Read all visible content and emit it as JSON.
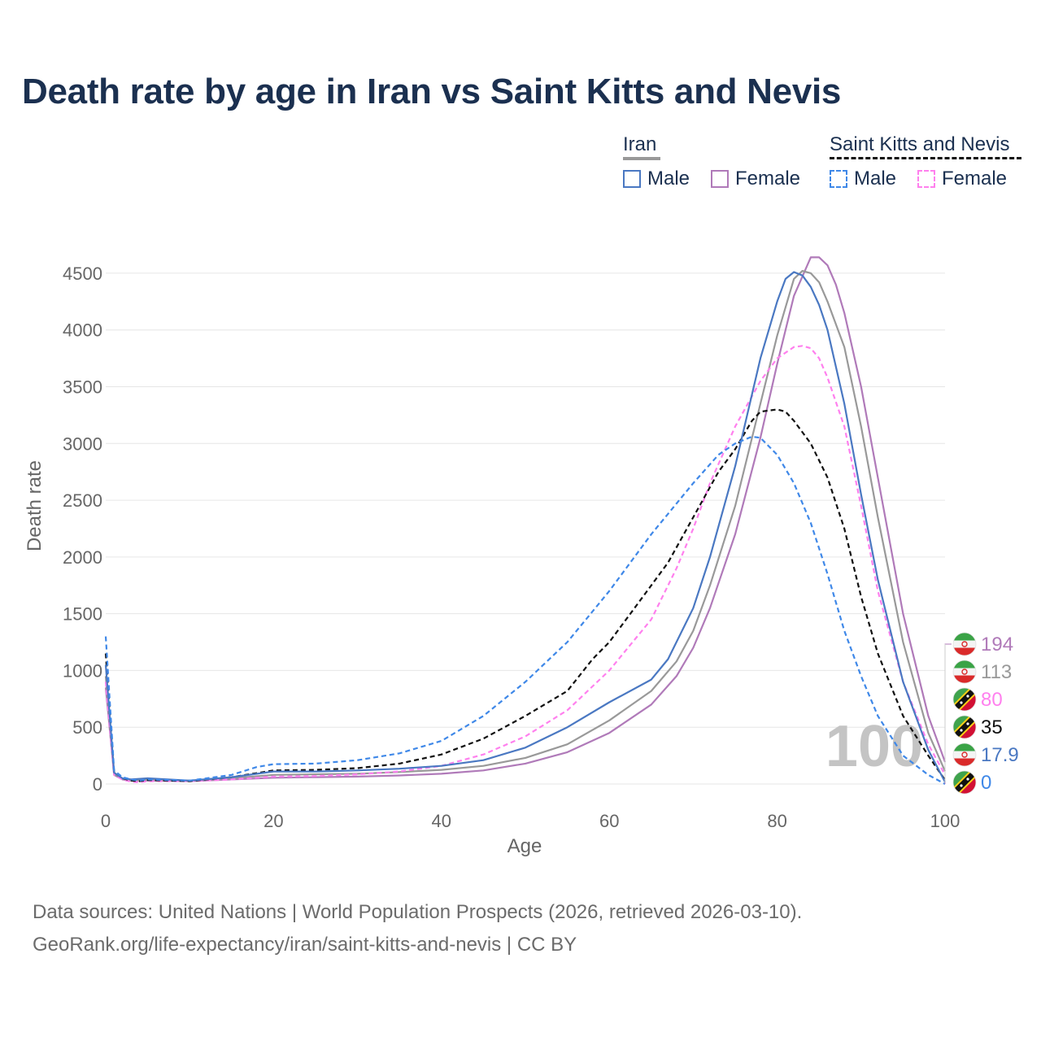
{
  "chart_data": {
    "type": "line",
    "title": "Death rate by age in Iran vs Saint Kitts and Nevis",
    "xlabel": "Age",
    "ylabel": "Death rate",
    "xlim": [
      0,
      100
    ],
    "ylim": [
      0,
      4650
    ],
    "x_ticks": [
      0,
      20,
      40,
      60,
      80,
      100
    ],
    "y_ticks": [
      0,
      500,
      1000,
      1500,
      2000,
      2500,
      3000,
      3500,
      4000,
      4500
    ],
    "year_watermark": "100",
    "legend": {
      "groups": [
        {
          "name": "Iran",
          "style": "solid",
          "color": "#999999",
          "items": [
            {
              "label": "Male",
              "color": "#4a78c2"
            },
            {
              "label": "Female",
              "color": "#b07ab9"
            }
          ]
        },
        {
          "name": "Saint Kitts and Nevis",
          "style": "dashed",
          "color": "#111111",
          "items": [
            {
              "label": "Male",
              "color": "#3f88e8"
            },
            {
              "label": "Female",
              "color": "#ff80ee"
            }
          ]
        }
      ]
    },
    "series": [
      {
        "name": "Iran Female",
        "country": "Iran",
        "color": "#b07ab9",
        "dash": false,
        "end_label": "194",
        "points": [
          [
            0,
            850
          ],
          [
            1,
            80
          ],
          [
            2,
            40
          ],
          [
            3,
            30
          ],
          [
            5,
            30
          ],
          [
            10,
            25
          ],
          [
            15,
            40
          ],
          [
            20,
            55
          ],
          [
            25,
            60
          ],
          [
            30,
            65
          ],
          [
            35,
            75
          ],
          [
            40,
            90
          ],
          [
            45,
            120
          ],
          [
            50,
            180
          ],
          [
            55,
            280
          ],
          [
            60,
            450
          ],
          [
            65,
            700
          ],
          [
            68,
            950
          ],
          [
            70,
            1200
          ],
          [
            72,
            1550
          ],
          [
            75,
            2200
          ],
          [
            78,
            3050
          ],
          [
            80,
            3700
          ],
          [
            82,
            4300
          ],
          [
            84,
            4640
          ],
          [
            85,
            4640
          ],
          [
            86,
            4570
          ],
          [
            87,
            4400
          ],
          [
            88,
            4150
          ],
          [
            90,
            3500
          ],
          [
            92,
            2700
          ],
          [
            95,
            1500
          ],
          [
            98,
            600
          ],
          [
            100,
            194
          ]
        ]
      },
      {
        "name": "Iran Both",
        "country": "Iran",
        "color": "#999999",
        "dash": false,
        "end_label": "113",
        "points": [
          [
            0,
            950
          ],
          [
            1,
            90
          ],
          [
            2,
            45
          ],
          [
            3,
            35
          ],
          [
            5,
            40
          ],
          [
            10,
            30
          ],
          [
            15,
            50
          ],
          [
            20,
            80
          ],
          [
            25,
            85
          ],
          [
            30,
            90
          ],
          [
            35,
            105
          ],
          [
            40,
            125
          ],
          [
            45,
            160
          ],
          [
            50,
            230
          ],
          [
            55,
            350
          ],
          [
            60,
            560
          ],
          [
            65,
            820
          ],
          [
            68,
            1080
          ],
          [
            70,
            1350
          ],
          [
            72,
            1750
          ],
          [
            75,
            2450
          ],
          [
            78,
            3350
          ],
          [
            80,
            3950
          ],
          [
            82,
            4450
          ],
          [
            83,
            4520
          ],
          [
            84,
            4500
          ],
          [
            85,
            4420
          ],
          [
            86,
            4250
          ],
          [
            88,
            3850
          ],
          [
            90,
            3150
          ],
          [
            92,
            2350
          ],
          [
            95,
            1250
          ],
          [
            98,
            450
          ],
          [
            100,
            113
          ]
        ]
      },
      {
        "name": "Saint Kitts and Nevis Female",
        "country": "Saint Kitts and Nevis",
        "color": "#ff80ee",
        "dash": true,
        "end_label": "80",
        "points": [
          [
            0,
            900
          ],
          [
            1,
            80
          ],
          [
            2,
            40
          ],
          [
            3,
            20
          ],
          [
            4,
            15
          ],
          [
            5,
            25
          ],
          [
            10,
            25
          ],
          [
            15,
            40
          ],
          [
            20,
            65
          ],
          [
            25,
            70
          ],
          [
            30,
            85
          ],
          [
            35,
            110
          ],
          [
            40,
            160
          ],
          [
            45,
            260
          ],
          [
            50,
            420
          ],
          [
            55,
            650
          ],
          [
            60,
            1000
          ],
          [
            65,
            1450
          ],
          [
            68,
            1900
          ],
          [
            70,
            2250
          ],
          [
            72,
            2650
          ],
          [
            75,
            3150
          ],
          [
            78,
            3550
          ],
          [
            80,
            3750
          ],
          [
            82,
            3850
          ],
          [
            83,
            3860
          ],
          [
            84,
            3840
          ],
          [
            85,
            3750
          ],
          [
            86,
            3580
          ],
          [
            88,
            3150
          ],
          [
            90,
            2450
          ],
          [
            92,
            1700
          ],
          [
            95,
            900
          ],
          [
            98,
            350
          ],
          [
            100,
            80
          ]
        ]
      },
      {
        "name": "Saint Kitts and Nevis Both",
        "country": "Saint Kitts and Nevis",
        "color": "#111111",
        "dash": true,
        "end_label": "35",
        "points": [
          [
            0,
            1150
          ],
          [
            1,
            100
          ],
          [
            2,
            50
          ],
          [
            3,
            30
          ],
          [
            4,
            25
          ],
          [
            5,
            35
          ],
          [
            10,
            25
          ],
          [
            15,
            60
          ],
          [
            20,
            120
          ],
          [
            25,
            125
          ],
          [
            30,
            140
          ],
          [
            35,
            180
          ],
          [
            40,
            260
          ],
          [
            45,
            400
          ],
          [
            50,
            600
          ],
          [
            55,
            820
          ],
          [
            58,
            1100
          ],
          [
            60,
            1250
          ],
          [
            63,
            1550
          ],
          [
            67,
            1950
          ],
          [
            70,
            2350
          ],
          [
            73,
            2750
          ],
          [
            75,
            2950
          ],
          [
            77,
            3200
          ],
          [
            78,
            3280
          ],
          [
            80,
            3300
          ],
          [
            81,
            3280
          ],
          [
            82,
            3200
          ],
          [
            84,
            3000
          ],
          [
            86,
            2700
          ],
          [
            88,
            2250
          ],
          [
            90,
            1650
          ],
          [
            92,
            1150
          ],
          [
            95,
            600
          ],
          [
            98,
            250
          ],
          [
            100,
            35
          ]
        ]
      },
      {
        "name": "Iran Male",
        "country": "Iran",
        "color": "#4a78c2",
        "dash": false,
        "end_label": "17.9",
        "points": [
          [
            0,
            1050
          ],
          [
            1,
            100
          ],
          [
            2,
            50
          ],
          [
            3,
            40
          ],
          [
            5,
            50
          ],
          [
            10,
            30
          ],
          [
            15,
            60
          ],
          [
            20,
            110
          ],
          [
            25,
            110
          ],
          [
            30,
            120
          ],
          [
            35,
            135
          ],
          [
            40,
            160
          ],
          [
            45,
            210
          ],
          [
            50,
            320
          ],
          [
            55,
            500
          ],
          [
            60,
            720
          ],
          [
            65,
            920
          ],
          [
            67,
            1100
          ],
          [
            70,
            1550
          ],
          [
            72,
            2000
          ],
          [
            75,
            2800
          ],
          [
            78,
            3750
          ],
          [
            80,
            4250
          ],
          [
            81,
            4450
          ],
          [
            82,
            4510
          ],
          [
            83,
            4480
          ],
          [
            84,
            4380
          ],
          [
            85,
            4220
          ],
          [
            86,
            4000
          ],
          [
            88,
            3350
          ],
          [
            90,
            2550
          ],
          [
            92,
            1800
          ],
          [
            95,
            900
          ],
          [
            98,
            300
          ],
          [
            100,
            17.9
          ]
        ]
      },
      {
        "name": "Saint Kitts and Nevis Male",
        "country": "Saint Kitts and Nevis",
        "color": "#3f88e8",
        "dash": true,
        "end_label": "0",
        "points": [
          [
            0,
            1300
          ],
          [
            1,
            120
          ],
          [
            2,
            60
          ],
          [
            3,
            40
          ],
          [
            4,
            30
          ],
          [
            5,
            40
          ],
          [
            10,
            30
          ],
          [
            15,
            80
          ],
          [
            18,
            150
          ],
          [
            20,
            175
          ],
          [
            25,
            180
          ],
          [
            30,
            210
          ],
          [
            35,
            270
          ],
          [
            40,
            380
          ],
          [
            45,
            600
          ],
          [
            50,
            900
          ],
          [
            55,
            1250
          ],
          [
            60,
            1700
          ],
          [
            65,
            2200
          ],
          [
            70,
            2650
          ],
          [
            73,
            2900
          ],
          [
            75,
            3000
          ],
          [
            77,
            3060
          ],
          [
            78,
            3050
          ],
          [
            80,
            2900
          ],
          [
            82,
            2650
          ],
          [
            84,
            2300
          ],
          [
            86,
            1850
          ],
          [
            88,
            1350
          ],
          [
            90,
            950
          ],
          [
            92,
            600
          ],
          [
            95,
            250
          ],
          [
            98,
            80
          ],
          [
            100,
            0
          ]
        ]
      }
    ]
  },
  "footer": {
    "line1": "Data sources: United Nations | World Population Prospects (2026, retrieved 2026-03-10).",
    "line2": "GeoRank.org/life-expectancy/iran/saint-kitts-and-nevis | CC BY"
  }
}
